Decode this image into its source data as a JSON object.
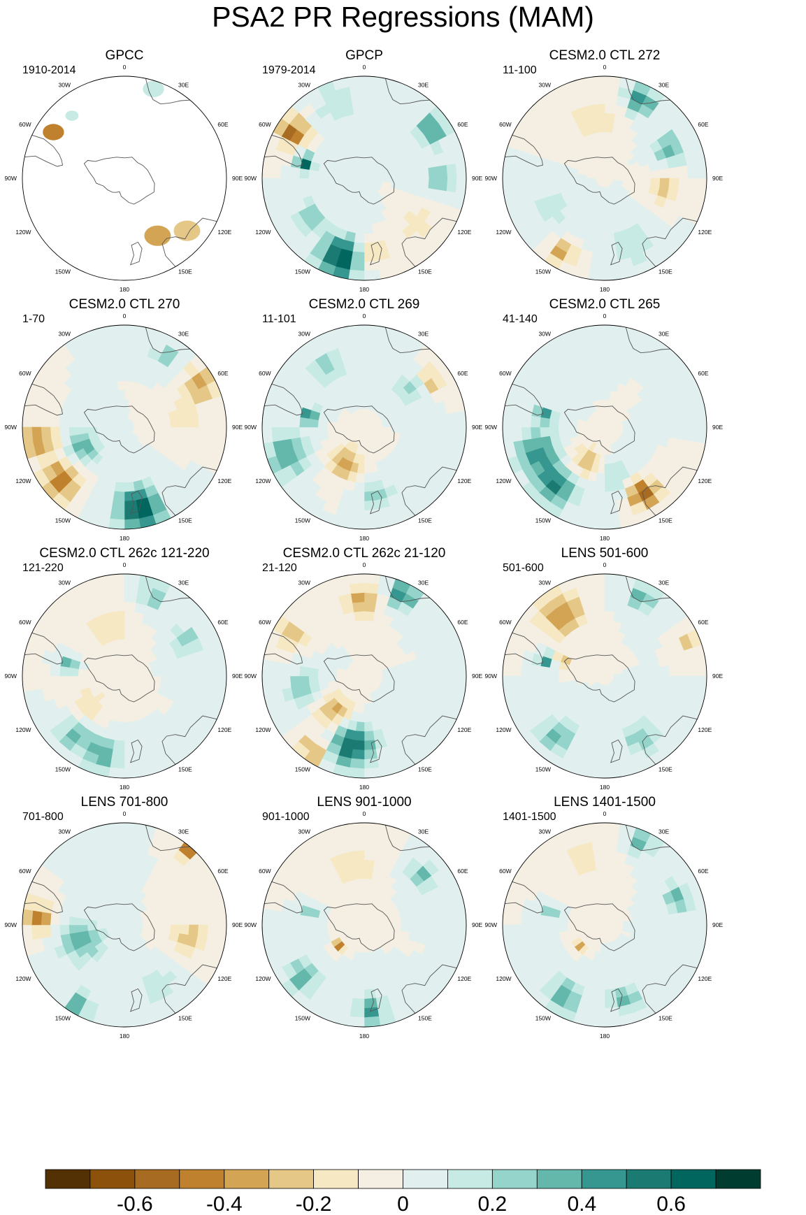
{
  "chart_data": {
    "type": "heatmap",
    "title": "PSA2 PR Regressions (MAM)",
    "projection": "south-polar-stereographic",
    "longitude_labels": [
      "0",
      "30E",
      "60E",
      "90E",
      "120E",
      "150E",
      "180",
      "150W",
      "120W",
      "90W",
      "60W",
      "30W"
    ],
    "colorbar": {
      "levels": [
        -0.7,
        -0.6,
        -0.5,
        -0.4,
        -0.3,
        -0.2,
        -0.1,
        0,
        0.1,
        0.2,
        0.3,
        0.4,
        0.5,
        0.6,
        0.7
      ],
      "tick_labels": [
        "-0.6",
        "-0.4",
        "-0.2",
        "0",
        "0.2",
        "0.4",
        "0.6"
      ],
      "colors": [
        "#543005",
        "#8c510a",
        "#a86b22",
        "#bf812d",
        "#d4a455",
        "#e5c887",
        "#f6e8c3",
        "#f4efe2",
        "#e1f0ee",
        "#c7eae5",
        "#95d4ca",
        "#64b7ab",
        "#35978f",
        "#1b7a72",
        "#01665e",
        "#003c30"
      ]
    },
    "panels": [
      {
        "title": "GPCC",
        "period": "1910-2014",
        "ocean_missing": true,
        "features": [
          {
            "lon": -57,
            "r": 0.83,
            "sign": -1,
            "mag": 0.45,
            "size": 0.08
          },
          {
            "lon": -40,
            "r": 0.8,
            "sign": 1,
            "mag": 0.15,
            "size": 0.05
          },
          {
            "lon": 150,
            "r": 0.65,
            "sign": -1,
            "mag": 0.3,
            "size": 0.1
          },
          {
            "lon": 130,
            "r": 0.8,
            "sign": -1,
            "mag": 0.25,
            "size": 0.1
          },
          {
            "lon": 18,
            "r": 0.92,
            "sign": 1,
            "mag": 0.15,
            "size": 0.08
          }
        ]
      },
      {
        "title": "GPCP",
        "period": "1979-2014",
        "features": [
          {
            "lon": -57,
            "r": 0.83,
            "sign": -1,
            "mag": 0.55,
            "size": 0.1
          },
          {
            "lon": -75,
            "r": 0.6,
            "sign": 1,
            "mag": 0.65,
            "size": 0.06
          },
          {
            "lon": 55,
            "r": 0.82,
            "sign": 1,
            "mag": 0.5,
            "size": 0.1
          },
          {
            "lon": -163,
            "r": 0.82,
            "sign": 1,
            "mag": 0.7,
            "size": 0.15
          },
          {
            "lon": 175,
            "r": 0.75,
            "sign": -1,
            "mag": 0.3,
            "size": 0.1
          },
          {
            "lon": -125,
            "r": 0.65,
            "sign": 1,
            "mag": 0.3,
            "size": 0.1
          },
          {
            "lon": 90,
            "r": 0.75,
            "sign": 1,
            "mag": 0.3,
            "size": 0.1
          },
          {
            "lon": 130,
            "r": 0.7,
            "sign": -1,
            "mag": 0.2,
            "size": 0.1
          },
          {
            "lon": -20,
            "r": 0.8,
            "sign": 1,
            "mag": 0.2,
            "size": 0.15
          }
        ]
      },
      {
        "title": "CESM2.0 CTL 272",
        "period": "11-100",
        "features": [
          {
            "lon": 25,
            "r": 0.85,
            "sign": 1,
            "mag": 0.5,
            "size": 0.1
          },
          {
            "lon": 65,
            "r": 0.7,
            "sign": 1,
            "mag": 0.4,
            "size": 0.1
          },
          {
            "lon": -10,
            "r": 0.6,
            "sign": -1,
            "mag": 0.2,
            "size": 0.15
          },
          {
            "lon": -150,
            "r": 0.85,
            "sign": -1,
            "mag": 0.4,
            "size": 0.08
          },
          {
            "lon": 100,
            "r": 0.6,
            "sign": -1,
            "mag": 0.25,
            "size": 0.1
          },
          {
            "lon": -120,
            "r": 0.6,
            "sign": 1,
            "mag": 0.2,
            "size": 0.12
          },
          {
            "lon": 160,
            "r": 0.7,
            "sign": 1,
            "mag": 0.2,
            "size": 0.15
          }
        ]
      },
      {
        "title": "CESM2.0 CTL 270",
        "period": "1-70",
        "features": [
          {
            "lon": -130,
            "r": 0.8,
            "sign": -1,
            "mag": 0.5,
            "size": 0.12
          },
          {
            "lon": -100,
            "r": 0.85,
            "sign": -1,
            "mag": 0.4,
            "size": 0.12
          },
          {
            "lon": 170,
            "r": 0.82,
            "sign": 1,
            "mag": 0.7,
            "size": 0.15
          },
          {
            "lon": -115,
            "r": 0.45,
            "sign": 1,
            "mag": 0.35,
            "size": 0.12
          },
          {
            "lon": 60,
            "r": 0.85,
            "sign": -1,
            "mag": 0.4,
            "size": 0.1
          },
          {
            "lon": 30,
            "r": 0.8,
            "sign": 1,
            "mag": 0.3,
            "size": 0.08
          },
          {
            "lon": 80,
            "r": 0.6,
            "sign": -1,
            "mag": 0.2,
            "size": 0.12
          }
        ]
      },
      {
        "title": "CESM2.0 CTL 269",
        "period": "11-101",
        "features": [
          {
            "lon": -78,
            "r": 0.55,
            "sign": 1,
            "mag": 0.55,
            "size": 0.06
          },
          {
            "lon": -110,
            "r": 0.8,
            "sign": 1,
            "mag": 0.4,
            "size": 0.15
          },
          {
            "lon": -150,
            "r": 0.4,
            "sign": -1,
            "mag": 0.35,
            "size": 0.12
          },
          {
            "lon": 55,
            "r": 0.8,
            "sign": -1,
            "mag": 0.3,
            "size": 0.08
          },
          {
            "lon": 50,
            "r": 0.6,
            "sign": 1,
            "mag": 0.25,
            "size": 0.1
          },
          {
            "lon": -30,
            "r": 0.7,
            "sign": 1,
            "mag": 0.25,
            "size": 0.12
          },
          {
            "lon": 170,
            "r": 0.7,
            "sign": 1,
            "mag": 0.25,
            "size": 0.12
          }
        ]
      },
      {
        "title": "CESM2.0 CTL 265",
        "period": "41-140",
        "features": [
          {
            "lon": 150,
            "r": 0.75,
            "sign": -1,
            "mag": 0.6,
            "size": 0.1
          },
          {
            "lon": -140,
            "r": 0.75,
            "sign": 1,
            "mag": 0.5,
            "size": 0.15
          },
          {
            "lon": -110,
            "r": 0.7,
            "sign": 1,
            "mag": 0.45,
            "size": 0.15
          },
          {
            "lon": -78,
            "r": 0.6,
            "sign": 1,
            "mag": 0.5,
            "size": 0.06
          },
          {
            "lon": -150,
            "r": 0.4,
            "sign": -1,
            "mag": 0.3,
            "size": 0.12
          },
          {
            "lon": 170,
            "r": 0.5,
            "sign": 1,
            "mag": 0.2,
            "size": 0.12
          }
        ]
      },
      {
        "title": "CESM2.0 CTL 262c 121-220",
        "period": "121-220",
        "features": [
          {
            "lon": -165,
            "r": 0.8,
            "sign": 1,
            "mag": 0.4,
            "size": 0.12
          },
          {
            "lon": -140,
            "r": 0.75,
            "sign": 1,
            "mag": 0.35,
            "size": 0.12
          },
          {
            "lon": -78,
            "r": 0.55,
            "sign": 1,
            "mag": 0.5,
            "size": 0.05
          },
          {
            "lon": 20,
            "r": 0.85,
            "sign": 1,
            "mag": 0.3,
            "size": 0.1
          },
          {
            "lon": 60,
            "r": 0.7,
            "sign": 1,
            "mag": 0.3,
            "size": 0.1
          },
          {
            "lon": -20,
            "r": 0.5,
            "sign": -1,
            "mag": 0.2,
            "size": 0.15
          },
          {
            "lon": -130,
            "r": 0.45,
            "sign": -1,
            "mag": 0.2,
            "size": 0.12
          }
        ]
      },
      {
        "title": "CESM2.0 CTL 262c 21-120",
        "period": "21-120",
        "features": [
          {
            "lon": -170,
            "r": 0.7,
            "sign": 1,
            "mag": 0.6,
            "size": 0.15
          },
          {
            "lon": -145,
            "r": 0.9,
            "sign": -1,
            "mag": 0.45,
            "size": 0.08
          },
          {
            "lon": 25,
            "r": 0.88,
            "sign": 1,
            "mag": 0.5,
            "size": 0.1
          },
          {
            "lon": 0,
            "r": 0.75,
            "sign": -1,
            "mag": 0.35,
            "size": 0.12
          },
          {
            "lon": -140,
            "r": 0.45,
            "sign": -1,
            "mag": 0.35,
            "size": 0.12
          },
          {
            "lon": -60,
            "r": 0.82,
            "sign": -1,
            "mag": 0.3,
            "size": 0.1
          },
          {
            "lon": -100,
            "r": 0.6,
            "sign": 1,
            "mag": 0.3,
            "size": 0.12
          }
        ]
      },
      {
        "title": "LENS 501-600",
        "period": "501-600",
        "features": [
          {
            "lon": -35,
            "r": 0.75,
            "sign": -1,
            "mag": 0.4,
            "size": 0.15
          },
          {
            "lon": -75,
            "r": 0.6,
            "sign": 1,
            "mag": 0.5,
            "size": 0.06
          },
          {
            "lon": -70,
            "r": 0.45,
            "sign": -1,
            "mag": 0.3,
            "size": 0.05
          },
          {
            "lon": 25,
            "r": 0.85,
            "sign": 1,
            "mag": 0.35,
            "size": 0.1
          },
          {
            "lon": 65,
            "r": 0.9,
            "sign": -1,
            "mag": 0.35,
            "size": 0.06
          },
          {
            "lon": -140,
            "r": 0.75,
            "sign": 1,
            "mag": 0.35,
            "size": 0.12
          },
          {
            "lon": 150,
            "r": 0.7,
            "sign": 1,
            "mag": 0.3,
            "size": 0.12
          }
        ]
      },
      {
        "title": "LENS 701-800",
        "period": "701-800",
        "features": [
          {
            "lon": -85,
            "r": 0.85,
            "sign": -1,
            "mag": 0.45,
            "size": 0.1
          },
          {
            "lon": -110,
            "r": 0.45,
            "sign": 1,
            "mag": 0.35,
            "size": 0.15
          },
          {
            "lon": 40,
            "r": 0.95,
            "sign": -1,
            "mag": 0.5,
            "size": 0.05
          },
          {
            "lon": -150,
            "r": 0.9,
            "sign": 1,
            "mag": 0.4,
            "size": 0.08
          },
          {
            "lon": 100,
            "r": 0.65,
            "sign": -1,
            "mag": 0.25,
            "size": 0.12
          },
          {
            "lon": 150,
            "r": 0.7,
            "sign": 1,
            "mag": 0.2,
            "size": 0.12
          }
        ]
      },
      {
        "title": "LENS 901-1000",
        "period": "901-1000",
        "features": [
          {
            "lon": -130,
            "r": 0.8,
            "sign": 1,
            "mag": 0.35,
            "size": 0.12
          },
          {
            "lon": 175,
            "r": 0.85,
            "sign": 1,
            "mag": 0.45,
            "size": 0.1
          },
          {
            "lon": 50,
            "r": 0.75,
            "sign": 1,
            "mag": 0.35,
            "size": 0.1
          },
          {
            "lon": -130,
            "r": 0.3,
            "sign": -1,
            "mag": 0.45,
            "size": 0.04
          },
          {
            "lon": -78,
            "r": 0.55,
            "sign": 1,
            "mag": 0.4,
            "size": 0.05
          },
          {
            "lon": -10,
            "r": 0.6,
            "sign": -1,
            "mag": 0.2,
            "size": 0.15
          }
        ]
      },
      {
        "title": "LENS 1401-1500",
        "period": "1401-1500",
        "features": [
          {
            "lon": 25,
            "r": 0.9,
            "sign": 1,
            "mag": 0.4,
            "size": 0.08
          },
          {
            "lon": 70,
            "r": 0.75,
            "sign": 1,
            "mag": 0.35,
            "size": 0.1
          },
          {
            "lon": -150,
            "r": 0.8,
            "sign": 1,
            "mag": 0.4,
            "size": 0.12
          },
          {
            "lon": 165,
            "r": 0.75,
            "sign": 1,
            "mag": 0.35,
            "size": 0.1
          },
          {
            "lon": -78,
            "r": 0.55,
            "sign": 1,
            "mag": 0.4,
            "size": 0.05
          },
          {
            "lon": -130,
            "r": 0.3,
            "sign": -1,
            "mag": 0.35,
            "size": 0.04
          },
          {
            "lon": -20,
            "r": 0.7,
            "sign": -1,
            "mag": 0.15,
            "size": 0.15
          }
        ]
      }
    ]
  }
}
